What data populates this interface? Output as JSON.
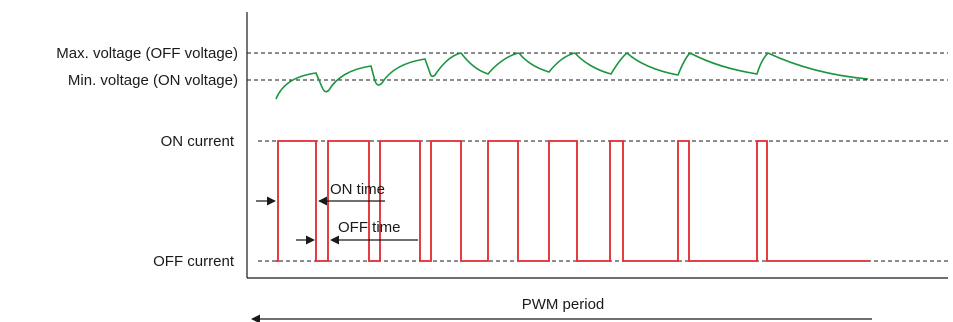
{
  "labels": {
    "max_voltage": "Max. voltage (OFF voltage)",
    "min_voltage": "Min. voltage (ON voltage)",
    "on_current": "ON current",
    "off_current": "OFF current",
    "on_time": "ON time",
    "off_time": "OFF time",
    "pwm_period": "PWM period"
  },
  "colors": {
    "voltage_curve": "#1a9641",
    "current_waveform": "#e0282e",
    "axis": "#1a1a1a"
  }
}
